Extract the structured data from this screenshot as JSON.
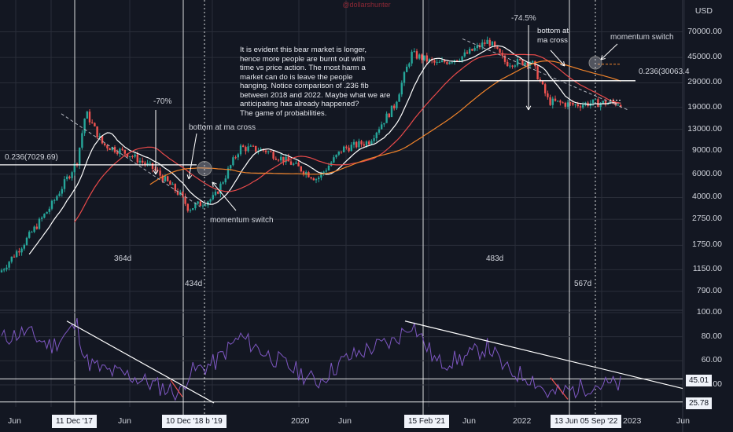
{
  "watermark": "@dollarshunter",
  "currency": "USD",
  "price_axis": [
    "70000.00",
    "45000.00",
    "29000.00",
    "19000.00",
    "13000.00",
    "9000.00",
    "6000.00",
    "4000.00",
    "2750.00",
    "1750.00",
    "1150.00",
    "790.00"
  ],
  "rsi_axis": [
    "100.00",
    "80.00",
    "60.00",
    "40.00"
  ],
  "badges": {
    "rsi_upper": "45.01",
    "rsi_lower": "25.78"
  },
  "date_axis": [
    "Jun",
    "Jun",
    "2020",
    "Jun",
    "Jun",
    "2022",
    "2023",
    "Jun"
  ],
  "date_badges": [
    "11 Dec '17",
    "10 Dec '18  b '19",
    "15 Feb '21",
    "13 Jun  05 Sep '22"
  ],
  "annotations": {
    "main_note": "It is evident this bear market is longer,\nhence more people are burnt out with\ntime vs price action. The most harm a\nmarket can do is leave the people\nhanging. Notice comparison of .236 fib\nbetween 2018 and 2022. Maybe what we are\nanticipating has already happened?\nThe game of probabilities.",
    "drop_2018": "-70%",
    "drop_2022": "-74.5%",
    "bottom_2018": "bottom at ma cross",
    "bottom_2022": "bottom at\nma cross",
    "momentum_2018": "momentum switch",
    "momentum_2022": "momentum switch",
    "fib_2018": "0.236(7029.69)",
    "fib_2022": "0.236(30063.4",
    "days_1": "364d",
    "days_2": "434d",
    "days_3": "483d",
    "days_4": "567d"
  },
  "colors": {
    "up": "#26a69a",
    "down": "#ef5350",
    "ma_white": "#ffffff",
    "ma_red": "#e84a4a",
    "ma_orange": "#f0832a",
    "rsi": "#7e57c2",
    "grid": "#2a2e39"
  },
  "chart_data": {
    "type": "line",
    "scale": "log",
    "title": "",
    "series": [
      {
        "x": [
          "2017-02",
          "2017-05",
          "2017-08",
          "2017-11",
          "2017-12",
          "2018-02",
          "2018-05",
          "2018-08",
          "2018-11",
          "2018-12",
          "2019-03",
          "2019-06",
          "2019-09",
          "2019-12",
          "2020-03",
          "2020-06",
          "2020-09",
          "2020-12",
          "2021-02",
          "2021-05",
          "2021-08",
          "2021-11",
          "2022-01",
          "2022-04",
          "2022-06",
          "2022-09",
          "2022-11"
        ],
        "values": [
          1100,
          1900,
          3500,
          7500,
          17500,
          10000,
          8500,
          6500,
          4200,
          3300,
          4000,
          9500,
          9000,
          7200,
          5500,
          9300,
          10500,
          19500,
          48000,
          40000,
          46000,
          60000,
          41000,
          42000,
          21000,
          19800,
          20500
        ]
      }
    ],
    "ylim": [
      790,
      90000
    ],
    "rsi": {
      "values": [
        78,
        84,
        72,
        90,
        60,
        52,
        48,
        40,
        33,
        50,
        58,
        80,
        66,
        54,
        42,
        60,
        70,
        76,
        92,
        58,
        62,
        72,
        52,
        46,
        32,
        36,
        40
      ],
      "ylim": [
        25,
        100
      ],
      "levels": [
        45.01,
        25.78
      ]
    },
    "fib_levels": [
      7029.69,
      30063.4
    ]
  }
}
